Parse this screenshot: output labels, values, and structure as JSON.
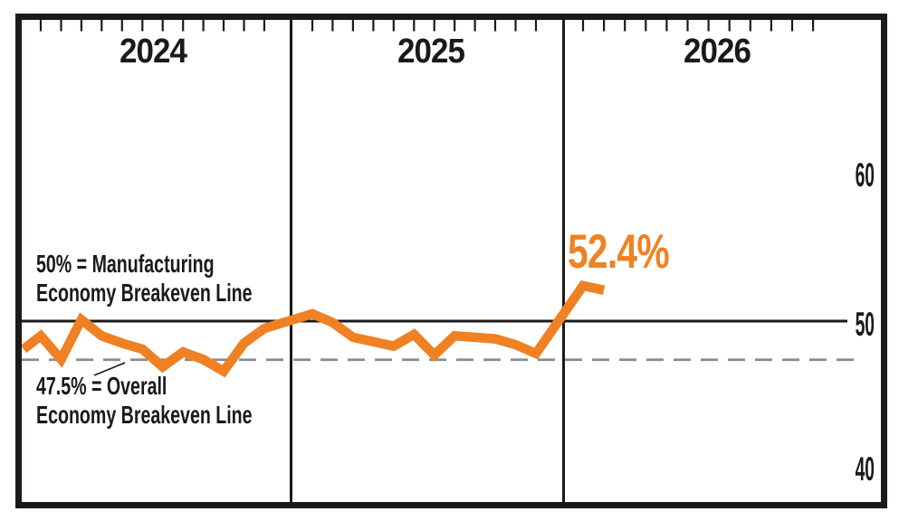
{
  "colors": {
    "accent_orange": "#EF8123",
    "ink": "#1C191A",
    "dashed_gray": "#8B8B8B",
    "background": "#FFFFFF"
  },
  "y_axis": {
    "tick_labels": [
      "60",
      "50",
      "40"
    ]
  },
  "annotations": {
    "manufacturing_breakeven": {
      "line1": "50% = Manufacturing",
      "line2": "Economy Breakeven Line"
    },
    "overall_breakeven": {
      "line1": "47.5% = Overall",
      "line2": "Economy Breakeven Line"
    },
    "forecast_value_label": "52.4%"
  },
  "chart_data": {
    "type": "line",
    "unit": "%",
    "x_groups": [
      {
        "label": "2024",
        "monthly_values": [
          49.0,
          47.4,
          50.1,
          49.0,
          48.5,
          48.1,
          46.9,
          47.9,
          47.4,
          46.6,
          48.5,
          49.5
        ]
      },
      {
        "label": "2025",
        "monthly_values": [
          50.5,
          49.9,
          48.9,
          48.6,
          48.3,
          49.1,
          47.7,
          49.0,
          48.9,
          48.8,
          48.4,
          47.8
        ]
      },
      {
        "label": "2026",
        "monthly_values": [
          52.4,
          52.1
        ]
      }
    ],
    "lead_in_value": 48.1,
    "y_ticks": [
      60,
      50,
      40
    ],
    "ylim": [
      37.7,
      70.4
    ],
    "reference_lines": [
      {
        "value": 50,
        "style": "solid",
        "meaning": "Manufacturing Economy Breakeven Line"
      },
      {
        "value": 47.5,
        "style": "dashed",
        "meaning": "Overall Economy Breakeven Line"
      }
    ],
    "annotated_point": {
      "group": "2026",
      "value": 52.4,
      "label": "52.4%"
    },
    "grid": "year panel dividers with monthly tick marks along top; no legend",
    "legend": "none"
  }
}
